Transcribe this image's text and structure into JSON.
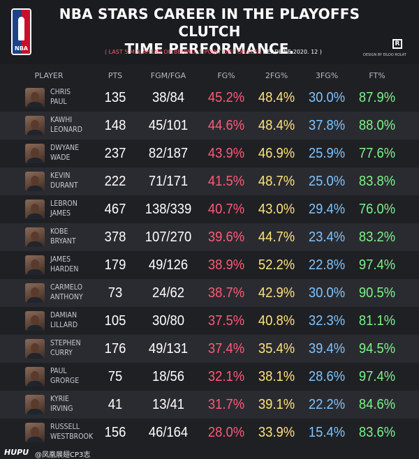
{
  "header": {
    "logo_text": "NBA",
    "title_line1": "NBA STARS  CAREER IN THE  PLAYOFFS CLUTCH",
    "title_line2": "TIME PERFORMANCE.",
    "subtitle": "( LAST 5 MIN,AHEAD OR BEHIND, 5 POINT DIFF OR LESS ",
    "deadline": "DEADLINE 2020. 12 )",
    "r_logo": "R",
    "design_credit": "DESIGN BY EILOO ROLAT"
  },
  "footer": {
    "brand": "HUPU",
    "watermark": "@凤凰展翅CP3志"
  },
  "colors": {
    "fg": "#ff5a78",
    "fg2": "#ffe27a",
    "fg3": "#7ec4ff",
    "ft": "#7ef28a"
  },
  "chart_data": {
    "type": "table",
    "columns": [
      "PLAYER",
      "PTS",
      "FGM/FGA",
      "FG%",
      "2FG%",
      "3FG%",
      "FT%"
    ],
    "rows": [
      {
        "first": "CHRIS",
        "last": "PAUL",
        "pts": "135",
        "fgm_fga": "38/84",
        "fg": "45.2%",
        "fg2": "48.4%",
        "fg3": "30.0%",
        "ft": "87.9%"
      },
      {
        "first": "KAWHI",
        "last": "LEONARD",
        "pts": "148",
        "fgm_fga": "45/101",
        "fg": "44.6%",
        "fg2": "48.4%",
        "fg3": "37.8%",
        "ft": "88.0%"
      },
      {
        "first": "DWYANE",
        "last": "WADE",
        "pts": "237",
        "fgm_fga": "82/187",
        "fg": "43.9%",
        "fg2": "46.9%",
        "fg3": "25.9%",
        "ft": "77.6%"
      },
      {
        "first": "KEVIN",
        "last": "DURANT",
        "pts": "222",
        "fgm_fga": "71/171",
        "fg": "41.5%",
        "fg2": "48.7%",
        "fg3": "25.0%",
        "ft": "83.8%"
      },
      {
        "first": "LEBRON",
        "last": "JAMES",
        "pts": "467",
        "fgm_fga": "138/339",
        "fg": "40.7%",
        "fg2": "43.0%",
        "fg3": "29.4%",
        "ft": "76.0%"
      },
      {
        "first": "KOBE",
        "last": "BRYANT",
        "pts": "378",
        "fgm_fga": "107/270",
        "fg": "39.6%",
        "fg2": "44.7%",
        "fg3": "23.4%",
        "ft": "83.2%"
      },
      {
        "first": "JAMES",
        "last": "HARDEN",
        "pts": "179",
        "fgm_fga": "49/126",
        "fg": "38.9%",
        "fg2": "52.2%",
        "fg3": "22.8%",
        "ft": "97.4%"
      },
      {
        "first": "CARMELO",
        "last": "ANTHONY",
        "pts": "73",
        "fgm_fga": "24/62",
        "fg": "38.7%",
        "fg2": "42.9%",
        "fg3": "30.0%",
        "ft": "90.5%"
      },
      {
        "first": "DAMIAN",
        "last": "LILLARD",
        "pts": "105",
        "fgm_fga": "30/80",
        "fg": "37.5%",
        "fg2": "40.8%",
        "fg3": "32.3%",
        "ft": "81.1%"
      },
      {
        "first": "STEPHEN",
        "last": "CURRY",
        "pts": "176",
        "fgm_fga": "49/131",
        "fg": "37.4%",
        "fg2": "35.4%",
        "fg3": "39.4%",
        "ft": "94.5%"
      },
      {
        "first": "PAUL",
        "last": "GRORGE",
        "pts": "75",
        "fgm_fga": "18/56",
        "fg": "32.1%",
        "fg2": "38.1%",
        "fg3": "28.6%",
        "ft": "97.4%"
      },
      {
        "first": "KYRIE",
        "last": "IRVING",
        "pts": "41",
        "fgm_fga": "13/41",
        "fg": "31.7%",
        "fg2": "39.1%",
        "fg3": "22.2%",
        "ft": "84.6%"
      },
      {
        "first": "RUSSELL",
        "last": "WESTBROOK",
        "pts": "156",
        "fgm_fga": "46/164",
        "fg": "28.0%",
        "fg2": "33.9%",
        "fg3": "15.4%",
        "ft": "83.6%"
      }
    ]
  }
}
